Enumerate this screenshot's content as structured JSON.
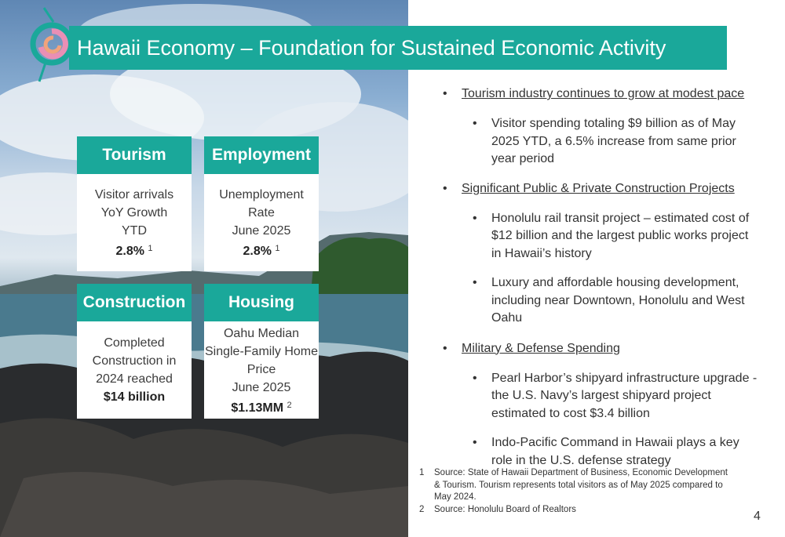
{
  "title": "Hawaii Economy – Foundation for Sustained Economic Activity",
  "colors": {
    "teal": "#1aa89a",
    "text": "#333333"
  },
  "cards": [
    {
      "header": "Tourism",
      "lines": [
        "Visitor arrivals",
        "YoY Growth",
        "YTD"
      ],
      "value": "2.8%",
      "note": "1"
    },
    {
      "header": "Employment",
      "lines": [
        "Unemployment",
        "Rate",
        "June 2025"
      ],
      "value": "2.8%",
      "note": "1"
    },
    {
      "header": "Construction",
      "lines": [
        "Completed",
        "Construction in",
        "2024 reached"
      ],
      "value": "$14 billion",
      "note": ""
    },
    {
      "header": "Housing",
      "lines": [
        "Oahu Median",
        "Single-Family Home",
        "Price",
        "June 2025"
      ],
      "value": "$1.13MM",
      "note": "2"
    }
  ],
  "bullets": [
    {
      "text": "Tourism industry continues to grow at modest pace",
      "subs": [
        "Visitor spending totaling $9 billion as of May 2025 YTD, a 6.5% increase from same prior year period"
      ]
    },
    {
      "text": "Significant Public & Private Construction Projects",
      "subs": [
        "Honolulu rail transit project – estimated cost of $12 billion and the largest public works project in Hawaii’s history",
        "Luxury and affordable housing development, including near Downtown, Honolulu and West Oahu"
      ]
    },
    {
      "text": "Military & Defense Spending",
      "subs": [
        "Pearl Harbor’s shipyard infrastructure upgrade - the U.S. Navy’s largest shipyard project estimated to cost $3.4 billion",
        "Indo-Pacific Command in Hawaii plays a key role in the U.S. defense strategy"
      ]
    }
  ],
  "footnotes": [
    {
      "num": "1",
      "text": "Source: State of Hawaii Department of Business, Economic Development & Tourism. Tourism represents total visitors as of May 2025 compared to May 2024."
    },
    {
      "num": "2",
      "text": "Source: Honolulu Board of Realtors"
    }
  ],
  "page_number": "4"
}
